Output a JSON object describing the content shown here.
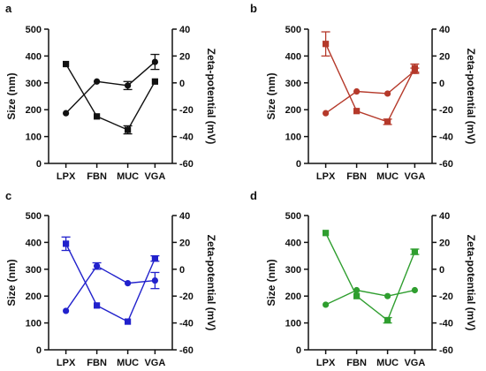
{
  "figure": {
    "axis_text": {
      "left_title": "Size (nm)",
      "right_title": "Zeta-potential (mV)"
    }
  },
  "chart_data": [
    {
      "panel": "a",
      "type": "line",
      "categories": [
        "LPX",
        "FBN",
        "MUC",
        "VGA"
      ],
      "color": "#111111",
      "ylabel": "Size (nm)",
      "y2label": "Zeta-potential (mV)",
      "ylim": [
        0,
        500
      ],
      "y2lim": [
        -60,
        40
      ],
      "yticks": [
        0,
        100,
        200,
        300,
        400,
        500
      ],
      "y2ticks": [
        -60,
        -40,
        -20,
        0,
        20,
        40
      ],
      "series": [
        {
          "axis": "left",
          "marker": "circle",
          "values": [
            187,
            305,
            290,
            378
          ],
          "errors": [
            0,
            0,
            15,
            28
          ]
        },
        {
          "axis": "right",
          "marker": "square",
          "values": [
            14,
            -25,
            -35,
            1
          ],
          "errors": [
            0,
            0,
            3,
            0
          ]
        }
      ]
    },
    {
      "panel": "b",
      "type": "line",
      "categories": [
        "LPX",
        "FBN",
        "MUC",
        "VGA"
      ],
      "color": "#b5392a",
      "ylabel": "Size (nm)",
      "y2label": "Zeta-potential (mV)",
      "ylim": [
        0,
        500
      ],
      "y2lim": [
        -60,
        40
      ],
      "yticks": [
        0,
        100,
        200,
        300,
        400,
        500
      ],
      "y2ticks": [
        -60,
        -40,
        -20,
        0,
        20,
        40
      ],
      "series": [
        {
          "axis": "left",
          "marker": "circle",
          "values": [
            187,
            268,
            260,
            345
          ],
          "errors": [
            0,
            0,
            0,
            10
          ]
        },
        {
          "axis": "right",
          "marker": "square",
          "values": [
            29,
            -21,
            -29,
            11
          ],
          "errors": [
            9,
            0,
            2,
            3
          ]
        }
      ]
    },
    {
      "panel": "c",
      "type": "line",
      "categories": [
        "LPX",
        "FBN",
        "MUC",
        "VGA"
      ],
      "color": "#2121cc",
      "ylabel": "Size (nm)",
      "y2label": "Zeta-potential (mV)",
      "ylim": [
        0,
        500
      ],
      "y2lim": [
        -60,
        40
      ],
      "yticks": [
        0,
        100,
        200,
        300,
        400,
        500
      ],
      "y2ticks": [
        -60,
        -40,
        -20,
        0,
        20,
        40
      ],
      "series": [
        {
          "axis": "left",
          "marker": "circle",
          "values": [
            145,
            312,
            248,
            258
          ],
          "errors": [
            0,
            12,
            0,
            30
          ]
        },
        {
          "axis": "right",
          "marker": "square",
          "values": [
            19,
            -27,
            -39,
            8
          ],
          "errors": [
            5,
            0,
            0,
            2
          ]
        }
      ]
    },
    {
      "panel": "d",
      "type": "line",
      "categories": [
        "LPX",
        "FBN",
        "MUC",
        "VGA"
      ],
      "color": "#2f9e2f",
      "ylabel": "Size (nm)",
      "y2label": "Zeta-potential (mV)",
      "ylim": [
        0,
        500
      ],
      "y2lim": [
        -60,
        40
      ],
      "yticks": [
        0,
        100,
        200,
        300,
        400,
        500
      ],
      "y2ticks": [
        -60,
        -40,
        -20,
        0,
        20,
        40
      ],
      "series": [
        {
          "axis": "left",
          "marker": "circle",
          "values": [
            168,
            222,
            200,
            222
          ],
          "errors": [
            0,
            0,
            0,
            0
          ]
        },
        {
          "axis": "right",
          "marker": "square",
          "values": [
            27,
            -20,
            -38,
            13
          ],
          "errors": [
            0,
            0,
            2,
            2
          ]
        }
      ]
    }
  ]
}
